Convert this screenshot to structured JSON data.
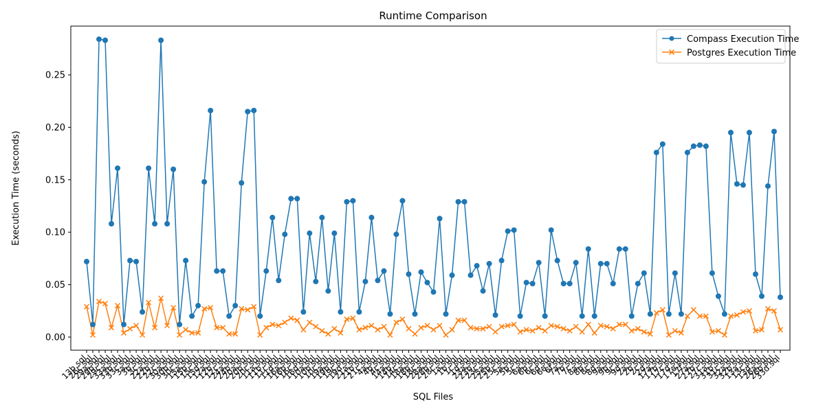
{
  "chart_data": {
    "type": "line",
    "title": "Runtime Comparison",
    "xlabel": "SQL Files",
    "ylabel": "Execution Time (seconds)",
    "ylim": [
      -0.0125,
      0.2965
    ],
    "yticks": [
      0.0,
      0.05,
      0.1,
      0.15,
      0.2,
      0.25
    ],
    "ytick_labels": [
      "0.00",
      "0.05",
      "0.10",
      "0.15",
      "0.20",
      "0.25"
    ],
    "grid": false,
    "legend_position": "top-right",
    "x": [
      "13b.sql",
      "26c.sql",
      "29a.sql",
      "29b.sql",
      "29c.sql",
      "33a.sql",
      "33b.sql",
      "33c.sql",
      "3a.sql",
      "3b.sql",
      "3c.sql",
      "22a.sql",
      "22b.sql",
      "22c.sql",
      "30a.sql",
      "30b.sql",
      "30c.sql",
      "15a.sql",
      "15b.sql",
      "15c.sql",
      "15d.sql",
      "12a.sql",
      "12b.sql",
      "12c.sql",
      "24a.sql",
      "24b.sql",
      "20a.sql",
      "20b.sql",
      "20c.sql",
      "11a.sql",
      "11b.sql",
      "11c.sql",
      "11d.sql",
      "16a.sql",
      "16b.sql",
      "16c.sql",
      "16d.sql",
      "10a.sql",
      "10b.sql",
      "10c.sql",
      "19a.sql",
      "19b.sql",
      "19c.sql",
      "19d.sql",
      "21a.sql",
      "21b.sql",
      "21c.sql",
      "4a.sql",
      "4b.sql",
      "4c.sql",
      "14a.sql",
      "14b.sql",
      "14c.sql",
      "18a.sql",
      "18b.sql",
      "18c.sql",
      "28a.sql",
      "28b.sql",
      "28c.sql",
      "1a.sql",
      "1b.sql",
      "1c.sql",
      "1d.sql",
      "23a.sql",
      "23b.sql",
      "23c.sql",
      "25a.sql",
      "25b.sql",
      "25c.sql",
      "5a.sql",
      "5b.sql",
      "5c.sql",
      "6a.sql",
      "6b.sql",
      "6c.sql",
      "6d.sql",
      "6e.sql",
      "6f.sql",
      "7a.sql",
      "7b.sql",
      "7c.sql",
      "8a.sql",
      "8b.sql",
      "8c.sql",
      "8d.sql",
      "9a.sql",
      "9b.sql",
      "9c.sql",
      "9d.sql",
      "2a.sql",
      "2b.sql",
      "2c.sql",
      "2d.sql",
      "17a.sql",
      "17b.sql",
      "17c.sql",
      "17d.sql",
      "17e.sql",
      "17f.sql",
      "27a.sql",
      "27b.sql",
      "27c.sql",
      "31a.sql",
      "31b.sql",
      "31c.sql",
      "32a.sql",
      "32b.sql",
      "13a.sql",
      "13c.sql",
      "13d.sql",
      "26a.sql",
      "26b.sql",
      "33d.sql"
    ],
    "xtick_labels": [
      "13b.sql",
      "26c.sql",
      "29a.sql",
      "29b.sql",
      "29c.sql",
      "33a.sql",
      "33b.sql",
      "33c.sql",
      "3a.sql",
      "3b.sql",
      "3c.sql",
      "22a.sql",
      "22b.sql",
      "22c.sql",
      "30a.sql",
      "30b.sql",
      "30c.sql",
      "15a.sql",
      "15b.sql",
      "15c.sql",
      "15d.sql",
      "12a.sql",
      "12b.sql",
      "12c.sql",
      "24a.sql",
      "24b.sql",
      "20a.sql",
      "20b.sql",
      "20c.sql",
      "11a.sql",
      "11b.sql",
      "11c.sql",
      "11d.sql",
      "16a.sql",
      "16b.sql",
      "16c.sql",
      "16d.sql",
      "10a.sql",
      "10b.sql",
      "10c.sql",
      "19a.sql",
      "19b.sql",
      "19c.sql",
      "19d.sql",
      "21a.sql",
      "21b.sql",
      "21c.sql",
      "4a.sql",
      "4b.sql",
      "4c.sql",
      "14a.sql",
      "14b.sql",
      "14c.sql",
      "18a.sql",
      "18b.sql",
      "18c.sql",
      "28a.sql",
      "28b.sql",
      "28c.sql",
      "1a.sql",
      "1b.sql",
      "1c.sql",
      "1d.sql",
      "23a.sql",
      "23b.sql",
      "23c.sql",
      "25a.sql",
      "25b.sql",
      "25c.sql",
      "5a.sql",
      "5b.sql",
      "5c.sql",
      "6a.sql",
      "6b.sql",
      "6c.sql",
      "6d.sql",
      "6e.sql",
      "6f.sql",
      "7a.sql",
      "7b.sql",
      "7c.sql",
      "8a.sql",
      "8b.sql",
      "8c.sql",
      "8d.sql",
      "9a.sql",
      "9b.sql",
      "9c.sql",
      "9d.sql",
      "2a.sql",
      "2b.sql",
      "2c.sql",
      "2d.sql",
      "17a.sql",
      "17b.sql",
      "17c.sql",
      "17d.sql",
      "17e.sql",
      "17f.sql",
      "27a.sql",
      "27b.sql",
      "27c.sql",
      "31a.sql",
      "31b.sql",
      "31c.sql",
      "32a.sql",
      "32b.sql",
      "13a.sql",
      "13c.sql",
      "13d.sql",
      "26a.sql",
      "26b.sql",
      "33d.sql"
    ],
    "series": [
      {
        "name": "Compass Execution Time",
        "color": "#1f77b4",
        "marker": "circle",
        "values": [
          0.072,
          0.012,
          0.284,
          0.283,
          0.108,
          0.161,
          0.012,
          0.073,
          0.072,
          0.024,
          0.161,
          0.108,
          0.283,
          0.108,
          0.16,
          0.012,
          0.073,
          0.02,
          0.03,
          0.148,
          0.216,
          0.063,
          0.063,
          0.02,
          0.03,
          0.147,
          0.215,
          0.216,
          0.02,
          0.063,
          0.114,
          0.054,
          0.098,
          0.132,
          0.132,
          0.024,
          0.099,
          0.053,
          0.114,
          0.044,
          0.099,
          0.024,
          0.129,
          0.13,
          0.024,
          0.053,
          0.114,
          0.054,
          0.063,
          0.022,
          0.098,
          0.13,
          0.06,
          0.022,
          0.062,
          0.052,
          0.043,
          0.113,
          0.022,
          0.059,
          0.129,
          0.129,
          0.059,
          0.068,
          0.044,
          0.07,
          0.021,
          0.073,
          0.101,
          0.102,
          0.02,
          0.052,
          0.051,
          0.071,
          0.02,
          0.102,
          0.073,
          0.051,
          0.051,
          0.071,
          0.02,
          0.084,
          0.02,
          0.07,
          0.07,
          0.051,
          0.084,
          0.084,
          0.02,
          0.051,
          0.061,
          0.022,
          0.176,
          0.184,
          0.022,
          0.061,
          0.022,
          0.176,
          0.182,
          0.183,
          0.182,
          0.061,
          0.039,
          0.022,
          0.195,
          0.146,
          0.145,
          0.195,
          0.06,
          0.039,
          0.144,
          0.196,
          0.038
        ]
      },
      {
        "name": "Postgres Execution Time",
        "color": "#ff7f0e",
        "marker": "x",
        "values": [
          0.029,
          0.002,
          0.034,
          0.032,
          0.009,
          0.03,
          0.004,
          0.008,
          0.011,
          0.002,
          0.033,
          0.009,
          0.037,
          0.011,
          0.028,
          0.002,
          0.007,
          0.004,
          0.004,
          0.027,
          0.028,
          0.009,
          0.009,
          0.003,
          0.003,
          0.027,
          0.026,
          0.029,
          0.002,
          0.009,
          0.012,
          0.011,
          0.014,
          0.018,
          0.016,
          0.007,
          0.014,
          0.01,
          0.006,
          0.003,
          0.008,
          0.004,
          0.017,
          0.018,
          0.007,
          0.009,
          0.011,
          0.007,
          0.01,
          0.002,
          0.014,
          0.017,
          0.008,
          0.003,
          0.009,
          0.011,
          0.007,
          0.011,
          0.002,
          0.007,
          0.016,
          0.016,
          0.009,
          0.008,
          0.008,
          0.01,
          0.005,
          0.01,
          0.011,
          0.012,
          0.005,
          0.007,
          0.006,
          0.009,
          0.006,
          0.011,
          0.01,
          0.008,
          0.006,
          0.01,
          0.005,
          0.012,
          0.004,
          0.011,
          0.01,
          0.008,
          0.012,
          0.012,
          0.006,
          0.008,
          0.005,
          0.003,
          0.023,
          0.026,
          0.002,
          0.006,
          0.004,
          0.02,
          0.026,
          0.02,
          0.02,
          0.005,
          0.006,
          0.002,
          0.02,
          0.021,
          0.024,
          0.025,
          0.006,
          0.007,
          0.027,
          0.025,
          0.007
        ]
      }
    ]
  }
}
